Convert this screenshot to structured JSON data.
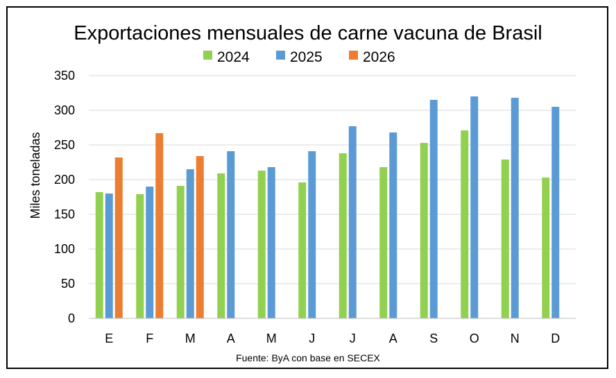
{
  "chart_data": {
    "type": "bar",
    "title": "Exportaciones mensuales de carne vacuna de Brasil",
    "xlabel": "",
    "ylabel": "Miles toneladas",
    "ylim": [
      0,
      350
    ],
    "yticks": [
      0,
      50,
      100,
      150,
      200,
      250,
      300,
      350
    ],
    "grid": true,
    "legend_position": "top",
    "categories": [
      "E",
      "F",
      "M",
      "A",
      "M",
      "J",
      "J",
      "A",
      "S",
      "O",
      "N",
      "D"
    ],
    "series": [
      {
        "name": "2024",
        "color": "#92d050",
        "values": [
          182,
          179,
          191,
          209,
          213,
          196,
          238,
          218,
          253,
          271,
          229,
          203
        ]
      },
      {
        "name": "2025",
        "color": "#5b9bd5",
        "values": [
          180,
          190,
          215,
          241,
          218,
          241,
          277,
          268,
          315,
          320,
          318,
          305
        ]
      },
      {
        "name": "2026",
        "color": "#ed7d31",
        "values": [
          232,
          267,
          234,
          null,
          null,
          null,
          null,
          null,
          null,
          null,
          null,
          null
        ]
      }
    ],
    "source_note": "Fuente: ByA con base en SECEX"
  }
}
